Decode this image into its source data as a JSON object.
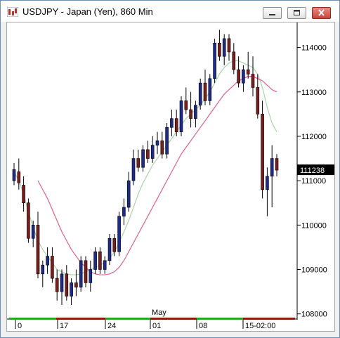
{
  "window": {
    "title": "USDJPY - Japan (Yen), 860 Min",
    "icons": [
      "app-chart-icon",
      "minimize-icon",
      "maximize-icon",
      "close-icon"
    ]
  },
  "chart_data": {
    "type": "candlestick",
    "symbol": "USDJPY",
    "interval": "860 Min",
    "ylim": [
      107900,
      114500
    ],
    "y_ticks": [
      "114000",
      "113000",
      "112000",
      "111000",
      "110000",
      "109000",
      "108000"
    ],
    "x_ticks": [
      "0",
      "17",
      "24",
      "01",
      "08",
      "15-02:00"
    ],
    "month_label": "May",
    "last_price": "111238",
    "colors": {
      "up": "#1e2b8a",
      "down": "#7a1e1e",
      "ma_fast": "#a8d5a8",
      "ma_slow": "#e06090",
      "last_price_bg": "#000000"
    },
    "candles": [
      [
        111000,
        111400,
        110900,
        111250
      ],
      [
        111200,
        111500,
        110800,
        110950
      ],
      [
        110900,
        111100,
        110300,
        110500
      ],
      [
        110500,
        110600,
        109600,
        109700
      ],
      [
        109700,
        110100,
        109500,
        110000
      ],
      [
        110000,
        110300,
        108800,
        108900
      ],
      [
        108900,
        109200,
        108600,
        109100
      ],
      [
        109100,
        109500,
        108900,
        109300
      ],
      [
        109300,
        109500,
        108700,
        108800
      ],
      [
        108800,
        109000,
        108300,
        108500
      ],
      [
        108500,
        109000,
        108200,
        108900
      ],
      [
        108900,
        109100,
        108300,
        108400
      ],
      [
        108400,
        108800,
        108200,
        108700
      ],
      [
        108700,
        109000,
        108400,
        108600
      ],
      [
        108600,
        109300,
        108500,
        109200
      ],
      [
        109200,
        109300,
        108600,
        108700
      ],
      [
        108700,
        109200,
        108500,
        109000
      ],
      [
        109000,
        109500,
        108900,
        109400
      ],
      [
        109400,
        109500,
        108900,
        109000
      ],
      [
        109000,
        109300,
        108900,
        109200
      ],
      [
        109200,
        109800,
        109100,
        109700
      ],
      [
        109700,
        109800,
        109300,
        109400
      ],
      [
        109400,
        110300,
        109300,
        110200
      ],
      [
        110200,
        110600,
        110000,
        110400
      ],
      [
        110400,
        111200,
        110300,
        111000
      ],
      [
        111000,
        111700,
        110900,
        111500
      ],
      [
        111500,
        111700,
        111200,
        111300
      ],
      [
        111300,
        111800,
        111200,
        111700
      ],
      [
        111700,
        111900,
        111400,
        111500
      ],
      [
        111500,
        112000,
        111400,
        111800
      ],
      [
        111800,
        112100,
        111600,
        111900
      ],
      [
        111900,
        112100,
        111500,
        111600
      ],
      [
        111600,
        112300,
        111500,
        112200
      ],
      [
        112200,
        112600,
        112000,
        112400
      ],
      [
        112400,
        112600,
        112000,
        112100
      ],
      [
        112100,
        112900,
        112000,
        112800
      ],
      [
        112800,
        113100,
        112500,
        112600
      ],
      [
        112600,
        113000,
        112200,
        112400
      ],
      [
        112400,
        112800,
        112200,
        112700
      ],
      [
        112700,
        113300,
        112600,
        113200
      ],
      [
        113200,
        113500,
        112700,
        112800
      ],
      [
        112800,
        113400,
        112700,
        113300
      ],
      [
        113300,
        114200,
        113200,
        114100
      ],
      [
        114100,
        114400,
        113700,
        113800
      ],
      [
        113800,
        114300,
        113600,
        114200
      ],
      [
        114200,
        114300,
        113700,
        113900
      ],
      [
        113900,
        114100,
        113400,
        113500
      ],
      [
        113500,
        113800,
        113100,
        113200
      ],
      [
        113200,
        113600,
        113000,
        113500
      ],
      [
        113500,
        113900,
        113300,
        113400
      ],
      [
        113400,
        113800,
        112900,
        113100
      ],
      [
        113100,
        113400,
        112400,
        112500
      ],
      [
        112500,
        112800,
        110600,
        110800
      ],
      [
        110800,
        111300,
        110200,
        111100
      ],
      [
        111100,
        111800,
        110400,
        111500
      ],
      [
        111500,
        111600,
        111100,
        111238
      ]
    ],
    "ma_fast": [
      111200,
      111000,
      110700,
      110300,
      109950,
      109650,
      109450,
      109300,
      109150,
      109000,
      108950,
      108900,
      108880,
      108880,
      108900,
      108950,
      109000,
      109050,
      109100,
      109150,
      109250,
      109400,
      109600,
      109850,
      110100,
      110400,
      110700,
      110950,
      111150,
      111350,
      111500,
      111650,
      111800,
      111950,
      112100,
      112250,
      112400,
      112500,
      112600,
      112700,
      112850,
      113000,
      113200,
      113400,
      113550,
      113650,
      113700,
      113700,
      113650,
      113600,
      113550,
      113400,
      113100,
      112650,
      112300,
      112100
    ],
    "ma_slow": [
      null,
      null,
      null,
      null,
      null,
      111000,
      110800,
      110600,
      110350,
      110100,
      109850,
      109650,
      109450,
      109300,
      109150,
      109050,
      108950,
      108900,
      108880,
      108880,
      108900,
      108950,
      109050,
      109200,
      109400,
      109600,
      109800,
      110000,
      110200,
      110400,
      110600,
      110800,
      111000,
      111200,
      111400,
      111600,
      111750,
      111900,
      112050,
      112200,
      112350,
      112500,
      112650,
      112800,
      112950,
      113050,
      113150,
      113250,
      113300,
      113350,
      113350,
      113300,
      113250,
      113150,
      113050,
      113000
    ]
  }
}
